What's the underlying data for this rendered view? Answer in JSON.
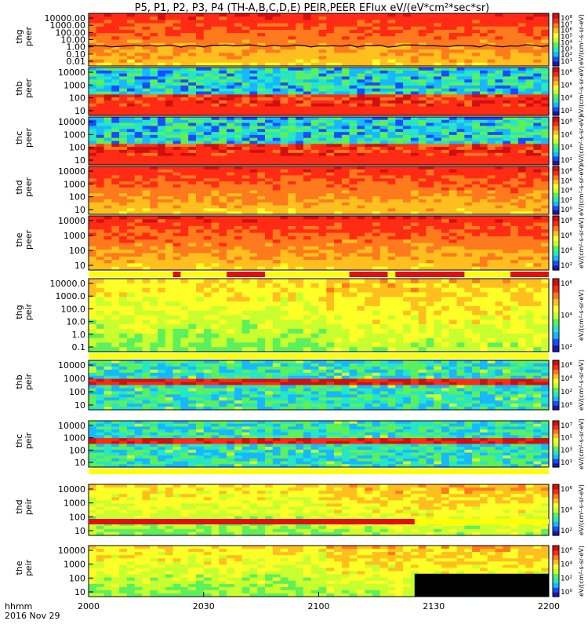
{
  "chart_data": {
    "type": "heatmap",
    "title": "P5, P1, P2, P3, P4 (TH-A,B,C,D,E) PEIR,PEER EFlux eV/(eV*cm²*sec*sr)",
    "xaxis": {
      "label_line1": "hhmm",
      "label_line2": "2016 Nov 29",
      "ticks": [
        "2000",
        "2030",
        "2100",
        "2130",
        "2200"
      ],
      "range": [
        "20:00",
        "22:00"
      ]
    },
    "colormap": [
      "#1d16a3",
      "#1a4cff",
      "#18b7ff",
      "#27e6c4",
      "#5cf05c",
      "#c8ff2e",
      "#ffff28",
      "#ffbf1f",
      "#ff7a1c",
      "#ff2b14",
      "#d01010"
    ],
    "flag_colors": {
      "quality_ok": "#ffff00",
      "quality_bad": "#e01010"
    },
    "panels": [
      {
        "name": "thg-peer",
        "label_line1": "thg",
        "label_line2": "peer",
        "ylog": true,
        "yticks": [
          "10000.00",
          "1000.00",
          "100.00",
          "10.00",
          "1.00",
          "0.10",
          "0.01"
        ],
        "zticks": [
          "10⁸",
          "10⁷",
          "10⁶",
          "10⁵",
          "10⁴",
          "10³",
          "10²",
          "10¹"
        ],
        "cbar_label": "eV/(cm²-s-sr-eV)",
        "style": "hot",
        "trace": true
      },
      {
        "name": "thb-peer",
        "label_line1": "thb",
        "label_line2": "peer",
        "ylog": true,
        "yticks": [
          "10000",
          "1000",
          "100",
          "10"
        ],
        "zticks": [
          "10⁸",
          "10⁶",
          "10⁴",
          "10²"
        ],
        "cbar_label": "eV/(cm²-s-sr-eV)",
        "style": "noisy"
      },
      {
        "name": "thc-peer",
        "label_line1": "thc",
        "label_line2": "peer",
        "ylog": true,
        "yticks": [
          "10000",
          "1000",
          "100",
          "10"
        ],
        "zticks": [
          "10⁸",
          "10⁶",
          "10⁴",
          "10²"
        ],
        "cbar_label": "eV/(cm²-s-sr-eV)",
        "style": "noisy"
      },
      {
        "name": "thd-peer",
        "label_line1": "thd",
        "label_line2": "peer",
        "ylog": true,
        "yticks": [
          "10000",
          "1000",
          "100",
          "10"
        ],
        "zticks": [
          "10⁸",
          "10⁶",
          "10⁴",
          "10²",
          "10⁰"
        ],
        "cbar_label": "eV/(cm²-s-sr-eV)",
        "style": "hot"
      },
      {
        "name": "the-peer",
        "label_line1": "the",
        "label_line2": "peer",
        "ylog": true,
        "yticks": [
          "10000",
          "1000",
          "100",
          "10"
        ],
        "zticks": [
          "10⁸",
          "10⁶",
          "10⁴",
          "10²"
        ],
        "cbar_label": "eV/(cm²-s-sr-eV)",
        "style": "hot"
      },
      {
        "name": "thg-peir",
        "label_line1": "thg",
        "label_line2": "peir",
        "ylog": true,
        "yticks": [
          "10000.0",
          "1000.0",
          "100.0",
          "10.0",
          "1.0",
          "0.1"
        ],
        "zticks": [
          "10⁶",
          "10⁴",
          "10²"
        ],
        "cbar_label": "eV/(cm²-s-sr-eV)",
        "style": "ion"
      },
      {
        "name": "thb-peir",
        "label_line1": "thb",
        "label_line2": "peir",
        "ylog": true,
        "yticks": [
          "10000",
          "1000",
          "100",
          "10"
        ],
        "zticks": [
          "10⁶",
          "10⁴",
          "10²",
          "10⁰"
        ],
        "cbar_label": "eV/(cm²-s-sr-eV)",
        "style": "ionnoisy"
      },
      {
        "name": "thc-peir",
        "label_line1": "thc",
        "label_line2": "peir",
        "ylog": true,
        "yticks": [
          "10000",
          "1000",
          "100",
          "10"
        ],
        "zticks": [
          "10⁷",
          "10⁵",
          "10³",
          "10¹"
        ],
        "cbar_label": "eV/(cm²-s-sr-eV)",
        "style": "ionnoisy"
      },
      {
        "name": "thd-peir",
        "label_line1": "thd",
        "label_line2": "peir",
        "ylog": true,
        "yticks": [
          "10000",
          "1000",
          "100",
          "10"
        ],
        "zticks": [
          "10⁶",
          "10⁴",
          "10²"
        ],
        "cbar_label": "eV/(cm²-s-sr-eV)",
        "style": "ion"
      },
      {
        "name": "the-peir",
        "label_line1": "the",
        "label_line2": "peir",
        "ylog": true,
        "yticks": [
          "10000",
          "1000",
          "100",
          "10"
        ],
        "zticks": [
          "10⁶",
          "10⁴",
          "10²",
          "10⁰"
        ],
        "cbar_label": "eV/(cm²-s-sr-eV)",
        "style": "ion",
        "gap_after": "21:25"
      }
    ],
    "flag_bars": [
      {
        "after_panel": "the-peer",
        "red_segments": [
          [
            "20:22",
            "20:24"
          ],
          [
            "20:36",
            "20:46"
          ],
          [
            "21:08",
            "21:18"
          ],
          [
            "21:20",
            "21:38"
          ],
          [
            "21:50",
            "22:00"
          ]
        ]
      },
      {
        "after_panel": "thg-peir",
        "red_segments": []
      },
      {
        "after_panel": "thc-peir",
        "red_segments": []
      },
      {
        "after_panel": "thd-peir",
        "red_segments": [
          [
            "20:00",
            "21:25"
          ]
        ]
      }
    ]
  }
}
